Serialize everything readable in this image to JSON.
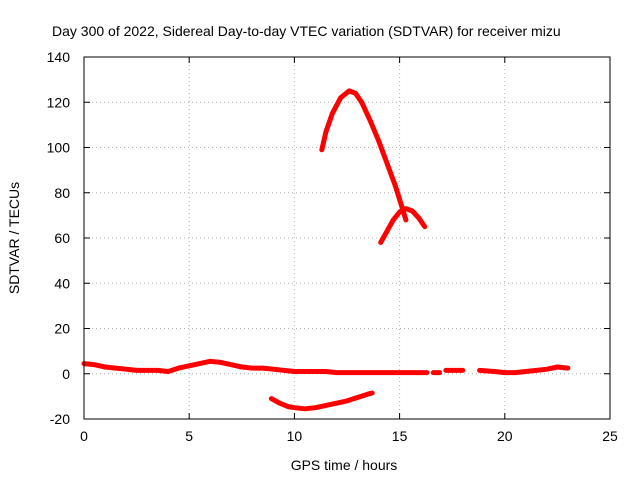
{
  "chart_data": {
    "type": "line",
    "title": "Day 300 of 2022, Sidereal Day-to-day VTEC variation (SDTVAR) for receiver mizu",
    "xlabel": "GPS time / hours",
    "ylabel": "SDTVAR / TECUs",
    "xlim": [
      0,
      25
    ],
    "ylim": [
      -20,
      140
    ],
    "x_ticks": [
      0,
      5,
      10,
      15,
      20,
      25
    ],
    "x_tick_labels": [
      "0",
      "5",
      "10",
      "15",
      "20",
      "25"
    ],
    "y_ticks": [
      -20,
      0,
      20,
      40,
      60,
      80,
      100,
      120,
      140
    ],
    "y_tick_labels": [
      "-20",
      "0",
      "20",
      "40",
      "60",
      "80",
      "100",
      "120",
      "140"
    ],
    "grid": true,
    "series_color": "#ff0000",
    "series": [
      {
        "name": "baseline",
        "points": [
          [
            0.0,
            4.5
          ],
          [
            0.5,
            4.0
          ],
          [
            1.0,
            3.0
          ],
          [
            1.5,
            2.5
          ],
          [
            2.0,
            2.0
          ],
          [
            2.5,
            1.5
          ],
          [
            3.0,
            1.5
          ],
          [
            3.5,
            1.5
          ],
          [
            4.0,
            1.0
          ],
          [
            4.5,
            2.5
          ],
          [
            5.0,
            3.5
          ],
          [
            5.5,
            4.5
          ],
          [
            6.0,
            5.5
          ],
          [
            6.5,
            5.0
          ],
          [
            7.0,
            4.0
          ],
          [
            7.5,
            3.0
          ],
          [
            8.0,
            2.5
          ],
          [
            8.5,
            2.5
          ],
          [
            9.0,
            2.0
          ],
          [
            9.5,
            1.5
          ],
          [
            10.0,
            1.0
          ],
          [
            10.5,
            1.0
          ],
          [
            11.0,
            1.0
          ],
          [
            11.5,
            1.0
          ],
          [
            12.0,
            0.5
          ],
          [
            12.5,
            0.5
          ],
          [
            13.0,
            0.5
          ],
          [
            13.5,
            0.5
          ],
          [
            14.0,
            0.5
          ],
          [
            14.5,
            0.5
          ],
          [
            15.0,
            0.5
          ],
          [
            15.5,
            0.5
          ],
          [
            16.0,
            0.5
          ],
          [
            16.3,
            0.5
          ]
        ]
      },
      {
        "name": "baseline-late-a",
        "points": [
          [
            16.6,
            0.5
          ],
          [
            16.9,
            0.5
          ]
        ]
      },
      {
        "name": "baseline-late-b",
        "points": [
          [
            17.2,
            1.5
          ],
          [
            18.0,
            1.5
          ]
        ]
      },
      {
        "name": "baseline-late-c",
        "points": [
          [
            18.8,
            1.5
          ],
          [
            19.5,
            1.0
          ],
          [
            20.0,
            0.5
          ],
          [
            20.5,
            0.5
          ],
          [
            21.0,
            1.0
          ],
          [
            21.5,
            1.5
          ],
          [
            22.0,
            2.0
          ],
          [
            22.5,
            3.0
          ],
          [
            23.0,
            2.5
          ]
        ]
      },
      {
        "name": "negative-dip",
        "points": [
          [
            8.9,
            -11.0
          ],
          [
            9.3,
            -13.0
          ],
          [
            9.7,
            -14.5
          ],
          [
            10.0,
            -15.0
          ],
          [
            10.5,
            -15.5
          ],
          [
            11.0,
            -15.0
          ],
          [
            11.5,
            -14.0
          ],
          [
            12.0,
            -13.0
          ],
          [
            12.5,
            -12.0
          ],
          [
            13.0,
            -10.5
          ],
          [
            13.5,
            -9.0
          ],
          [
            13.7,
            -8.5
          ]
        ]
      },
      {
        "name": "large-peak",
        "points": [
          [
            11.3,
            99.0
          ],
          [
            11.5,
            107.0
          ],
          [
            11.8,
            115.0
          ],
          [
            12.2,
            122.0
          ],
          [
            12.6,
            125.0
          ],
          [
            12.9,
            124.0
          ],
          [
            13.2,
            120.0
          ],
          [
            13.6,
            112.0
          ],
          [
            14.0,
            103.0
          ],
          [
            14.4,
            93.0
          ],
          [
            14.8,
            83.0
          ],
          [
            15.1,
            74.0
          ],
          [
            15.3,
            68.0
          ]
        ]
      },
      {
        "name": "secondary-arc",
        "points": [
          [
            14.1,
            58.0
          ],
          [
            14.4,
            63.0
          ],
          [
            14.7,
            68.0
          ],
          [
            15.0,
            71.5
          ],
          [
            15.3,
            73.0
          ],
          [
            15.6,
            72.0
          ],
          [
            15.9,
            69.0
          ],
          [
            16.2,
            65.0
          ]
        ]
      }
    ]
  }
}
